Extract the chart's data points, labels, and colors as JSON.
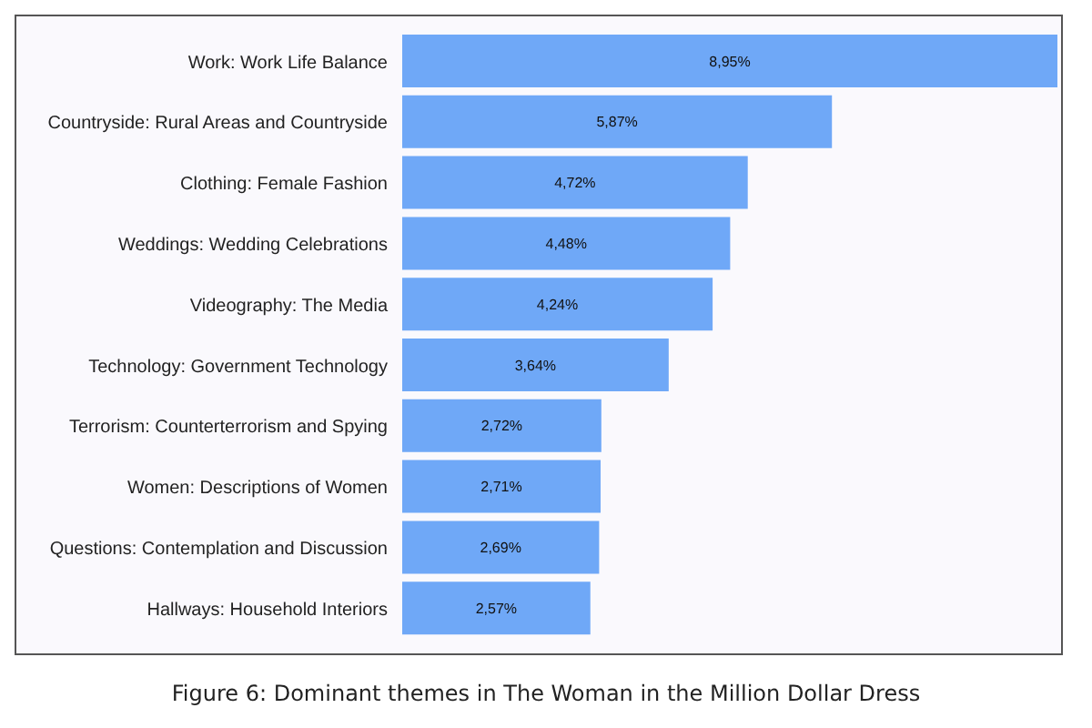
{
  "chart_data": {
    "type": "bar",
    "orientation": "horizontal",
    "categories": [
      "Work: Work Life Balance",
      "Countryside: Rural Areas and Countryside",
      "Clothing: Female Fashion",
      "Weddings: Wedding Celebrations",
      "Videography: The Media",
      "Technology: Government Technology",
      "Terrorism: Counterterrorism and Spying",
      "Women: Descriptions of Women",
      "Questions: Contemplation and Discussion",
      "Hallways: Household Interiors"
    ],
    "values": [
      8.95,
      5.87,
      4.72,
      4.48,
      4.24,
      3.64,
      2.72,
      2.71,
      2.69,
      2.57
    ],
    "value_labels": [
      "8,95%",
      "5,87%",
      "4,72%",
      "4,48%",
      "4,24%",
      "3,64%",
      "2,72%",
      "2,71%",
      "2,69%",
      "2,57%"
    ],
    "color": "#6fa8f7",
    "grid": false,
    "legend": false,
    "annotations": [
      "Figure 6: Dominant themes in The Woman in the Million Dollar Dress"
    ]
  }
}
